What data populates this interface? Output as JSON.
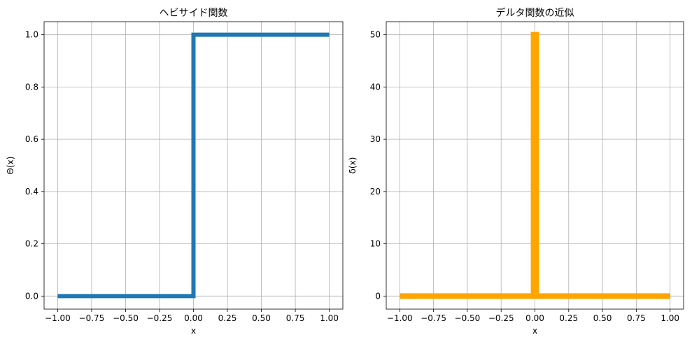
{
  "chart_data": [
    {
      "type": "line",
      "title": "ヘビサイド関数",
      "xlabel": "x",
      "ylabel": "Θ(x)",
      "xlim": [
        -1.1,
        1.1
      ],
      "ylim": [
        -0.05,
        1.05
      ],
      "xticks": [
        -1.0,
        -0.75,
        -0.5,
        -0.25,
        0.0,
        0.25,
        0.5,
        0.75,
        1.0
      ],
      "xtick_labels": [
        "−1.00",
        "−0.75",
        "−0.50",
        "−0.25",
        "0.00",
        "0.25",
        "0.50",
        "0.75",
        "1.00"
      ],
      "yticks": [
        0.0,
        0.2,
        0.4,
        0.6,
        0.8,
        1.0
      ],
      "ytick_labels": [
        "0.0",
        "0.2",
        "0.4",
        "0.6",
        "0.8",
        "1.0"
      ],
      "grid": true,
      "series": [
        {
          "color": "#1f77b4",
          "x": [
            -1.0,
            0.0,
            0.0,
            1.0
          ],
          "y": [
            0.0,
            0.0,
            1.0,
            1.0
          ]
        }
      ]
    },
    {
      "type": "line",
      "title": "デルタ関数の近似",
      "xlabel": "x",
      "ylabel": "δ(x)",
      "xlim": [
        -1.1,
        1.1
      ],
      "ylim": [
        -2.5,
        52.5
      ],
      "xticks": [
        -1.0,
        -0.75,
        -0.5,
        -0.25,
        0.0,
        0.25,
        0.5,
        0.75,
        1.0
      ],
      "xtick_labels": [
        "−1.00",
        "−0.75",
        "−0.50",
        "−0.25",
        "0.00",
        "0.25",
        "0.50",
        "0.75",
        "1.00"
      ],
      "yticks": [
        0,
        10,
        20,
        30,
        40,
        50
      ],
      "ytick_labels": [
        "0",
        "10",
        "20",
        "30",
        "40",
        "50"
      ],
      "grid": true,
      "series": [
        {
          "color": "#ffa500",
          "x": [
            -1.0,
            -0.01,
            -0.01,
            0.01,
            0.01,
            1.0
          ],
          "y": [
            0.0,
            0.0,
            50.0,
            50.0,
            0.0,
            0.0
          ]
        }
      ]
    }
  ]
}
